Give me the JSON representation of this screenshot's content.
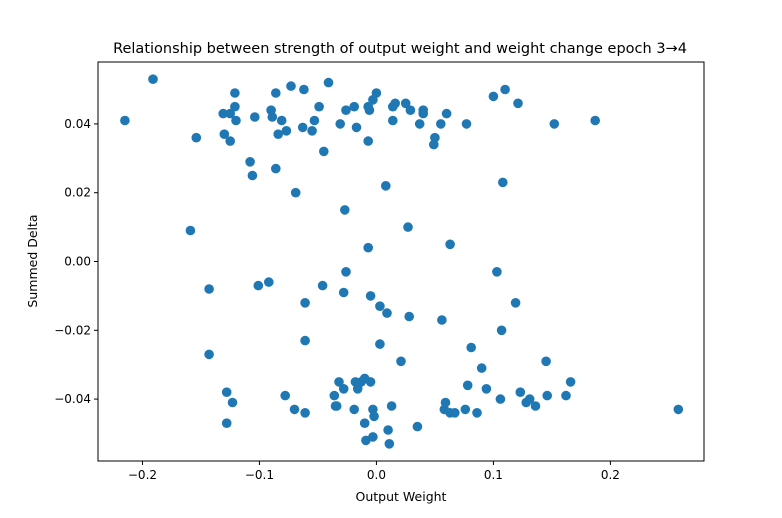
{
  "chart_data": {
    "type": "scatter",
    "title": "Relationship between strength of output weight and weight change epoch 3→4",
    "xlabel": "Output Weight",
    "ylabel": "Summed Delta",
    "xlim": [
      -0.238,
      0.28
    ],
    "ylim": [
      -0.058,
      0.058
    ],
    "xticks": [
      -0.2,
      -0.1,
      0.0,
      0.1,
      0.2
    ],
    "xtick_labels": [
      "−0.2",
      "−0.1",
      "0.0",
      "0.1",
      "0.2"
    ],
    "yticks": [
      -0.04,
      -0.02,
      0.0,
      0.02,
      0.04
    ],
    "ytick_labels": [
      "−0.04",
      "−0.02",
      "0.00",
      "0.02",
      "0.04"
    ],
    "grid": false,
    "marker_color": "#1f77b4",
    "points": [
      [
        -0.215,
        0.041
      ],
      [
        -0.191,
        0.053
      ],
      [
        -0.154,
        0.036
      ],
      [
        -0.131,
        0.043
      ],
      [
        -0.13,
        0.037
      ],
      [
        -0.125,
        0.035
      ],
      [
        -0.125,
        0.043
      ],
      [
        -0.121,
        0.045
      ],
      [
        -0.121,
        0.049
      ],
      [
        -0.12,
        0.041
      ],
      [
        -0.108,
        0.029
      ],
      [
        -0.106,
        0.025
      ],
      [
        -0.104,
        0.042
      ],
      [
        -0.09,
        0.044
      ],
      [
        -0.089,
        0.042
      ],
      [
        -0.086,
        0.049
      ],
      [
        -0.086,
        0.027
      ],
      [
        -0.084,
        0.037
      ],
      [
        -0.081,
        0.041
      ],
      [
        -0.077,
        0.038
      ],
      [
        -0.073,
        0.051
      ],
      [
        -0.069,
        0.02
      ],
      [
        -0.063,
        0.039
      ],
      [
        -0.062,
        0.05
      ],
      [
        -0.055,
        0.038
      ],
      [
        -0.053,
        0.041
      ],
      [
        -0.049,
        0.045
      ],
      [
        -0.045,
        0.032
      ],
      [
        -0.041,
        0.052
      ],
      [
        -0.031,
        0.04
      ],
      [
        -0.026,
        0.044
      ],
      [
        -0.019,
        0.045
      ],
      [
        -0.017,
        0.039
      ],
      [
        -0.007,
        0.045
      ],
      [
        -0.007,
        0.035
      ],
      [
        -0.006,
        0.044
      ],
      [
        -0.003,
        0.047
      ],
      [
        0.0,
        0.049
      ],
      [
        0.008,
        0.022
      ],
      [
        0.014,
        0.045
      ],
      [
        0.014,
        0.041
      ],
      [
        0.016,
        0.046
      ],
      [
        0.025,
        0.046
      ],
      [
        0.029,
        0.044
      ],
      [
        0.037,
        0.04
      ],
      [
        0.04,
        0.044
      ],
      [
        0.04,
        0.043
      ],
      [
        0.049,
        0.034
      ],
      [
        0.05,
        0.036
      ],
      [
        0.055,
        0.04
      ],
      [
        0.06,
        0.043
      ],
      [
        0.077,
        0.04
      ],
      [
        0.1,
        0.048
      ],
      [
        0.11,
        0.05
      ],
      [
        0.121,
        0.046
      ],
      [
        0.152,
        0.04
      ],
      [
        0.187,
        0.041
      ],
      [
        0.108,
        0.023
      ],
      [
        -0.159,
        0.009
      ],
      [
        -0.027,
        0.015
      ],
      [
        -0.007,
        0.004
      ],
      [
        0.027,
        0.01
      ],
      [
        0.063,
        0.005
      ],
      [
        -0.143,
        -0.008
      ],
      [
        -0.101,
        -0.007
      ],
      [
        -0.092,
        -0.006
      ],
      [
        -0.061,
        -0.012
      ],
      [
        -0.046,
        -0.007
      ],
      [
        -0.026,
        -0.003
      ],
      [
        -0.028,
        -0.009
      ],
      [
        -0.005,
        -0.01
      ],
      [
        0.003,
        -0.013
      ],
      [
        0.009,
        -0.015
      ],
      [
        0.028,
        -0.016
      ],
      [
        0.056,
        -0.017
      ],
      [
        0.103,
        -0.003
      ],
      [
        0.107,
        -0.02
      ],
      [
        0.119,
        -0.012
      ],
      [
        -0.143,
        -0.027
      ],
      [
        -0.061,
        -0.023
      ],
      [
        0.003,
        -0.024
      ],
      [
        0.021,
        -0.029
      ],
      [
        0.081,
        -0.025
      ],
      [
        0.09,
        -0.031
      ],
      [
        0.145,
        -0.029
      ],
      [
        -0.128,
        -0.038
      ],
      [
        -0.128,
        -0.047
      ],
      [
        -0.123,
        -0.041
      ],
      [
        -0.078,
        -0.039
      ],
      [
        -0.07,
        -0.043
      ],
      [
        -0.061,
        -0.044
      ],
      [
        -0.036,
        -0.039
      ],
      [
        -0.035,
        -0.042
      ],
      [
        -0.034,
        -0.042
      ],
      [
        -0.032,
        -0.035
      ],
      [
        -0.028,
        -0.037
      ],
      [
        -0.019,
        -0.043
      ],
      [
        -0.018,
        -0.035
      ],
      [
        -0.016,
        -0.037
      ],
      [
        -0.013,
        -0.035
      ],
      [
        -0.01,
        -0.034
      ],
      [
        -0.01,
        -0.047
      ],
      [
        -0.009,
        -0.052
      ],
      [
        -0.005,
        -0.035
      ],
      [
        -0.003,
        -0.051
      ],
      [
        -0.003,
        -0.043
      ],
      [
        -0.002,
        -0.045
      ],
      [
        0.01,
        -0.049
      ],
      [
        0.011,
        -0.053
      ],
      [
        0.013,
        -0.042
      ],
      [
        0.035,
        -0.048
      ],
      [
        0.058,
        -0.043
      ],
      [
        0.059,
        -0.041
      ],
      [
        0.063,
        -0.044
      ],
      [
        0.067,
        -0.044
      ],
      [
        0.076,
        -0.043
      ],
      [
        0.078,
        -0.036
      ],
      [
        0.086,
        -0.044
      ],
      [
        0.094,
        -0.037
      ],
      [
        0.106,
        -0.04
      ],
      [
        0.123,
        -0.038
      ],
      [
        0.128,
        -0.041
      ],
      [
        0.131,
        -0.04
      ],
      [
        0.136,
        -0.042
      ],
      [
        0.146,
        -0.039
      ],
      [
        0.162,
        -0.039
      ],
      [
        0.166,
        -0.035
      ],
      [
        0.258,
        -0.043
      ]
    ]
  }
}
